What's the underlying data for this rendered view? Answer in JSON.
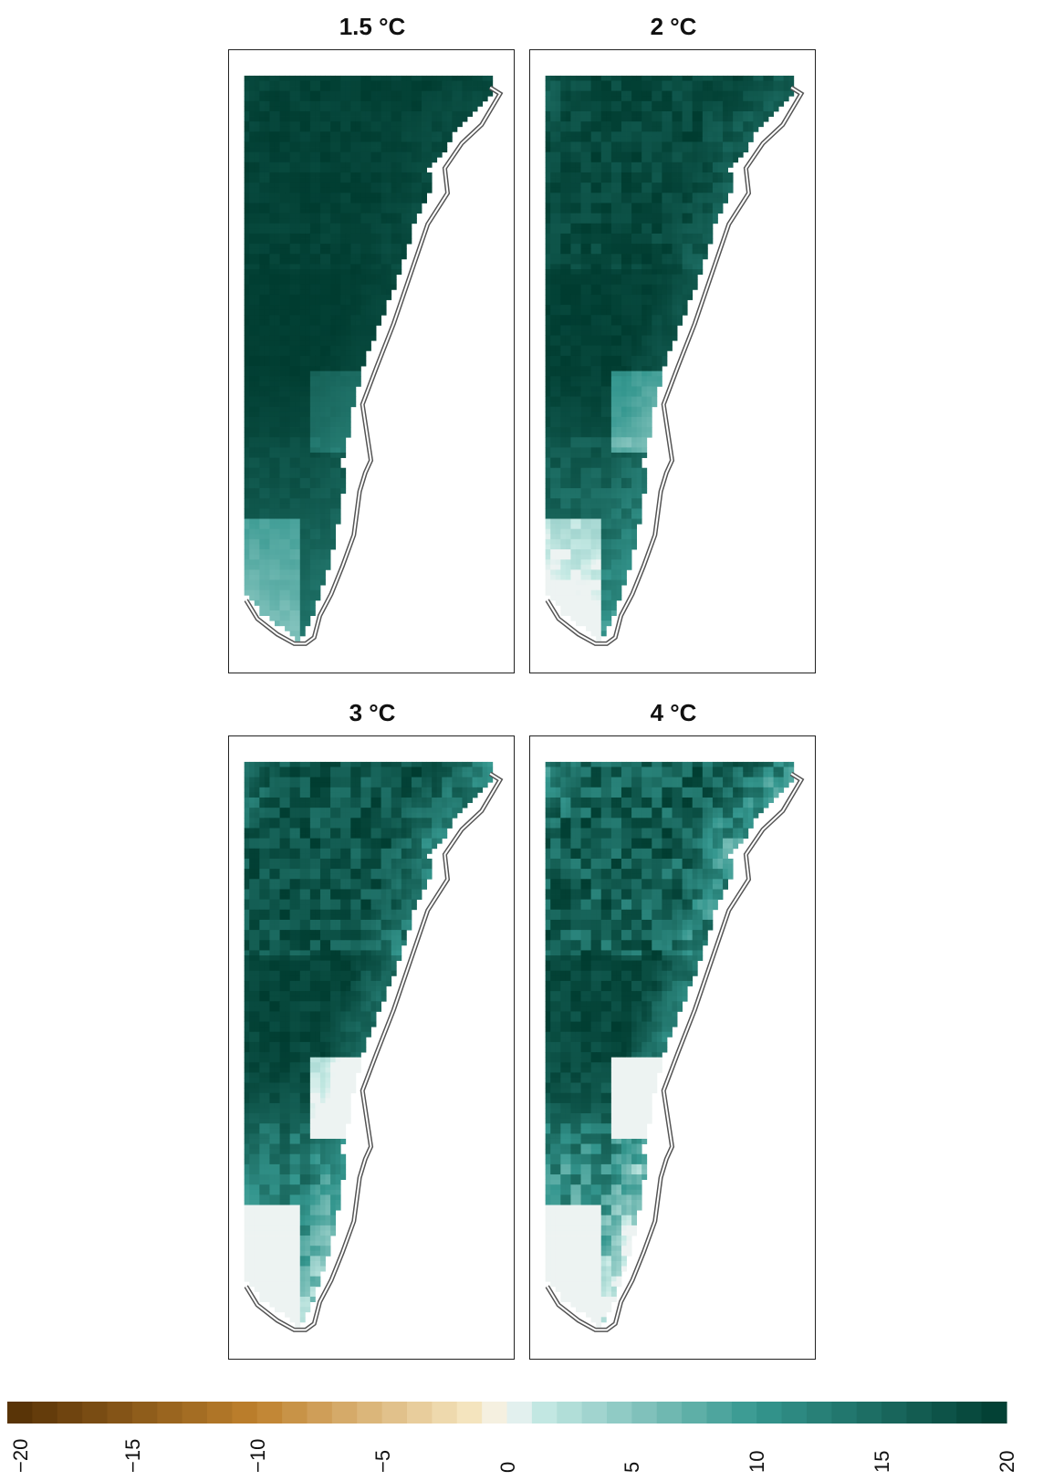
{
  "chart_data": {
    "type": "heatmap",
    "panels": [
      {
        "title": "1.5 °C",
        "warming": 1.5,
        "lightness": 0.1
      },
      {
        "title": "2 °C",
        "warming": 2,
        "lightness": 0.22
      },
      {
        "title": "3 °C",
        "warming": 3,
        "lightness": 0.42
      },
      {
        "title": "4 °C",
        "warming": 4,
        "lightness": 0.58
      }
    ],
    "colorbar": {
      "range": [
        -20,
        20
      ],
      "ticks": [
        -20,
        -15,
        -10,
        -5,
        0,
        5,
        10,
        15,
        20
      ],
      "tick_labels": [
        "−20",
        "−15",
        "−10",
        "−5",
        "0",
        "5",
        "10",
        "15",
        "20"
      ],
      "negative_color": "#543005",
      "mid_color": "#f5f5f5",
      "positive_color": "#003c30"
    }
  }
}
